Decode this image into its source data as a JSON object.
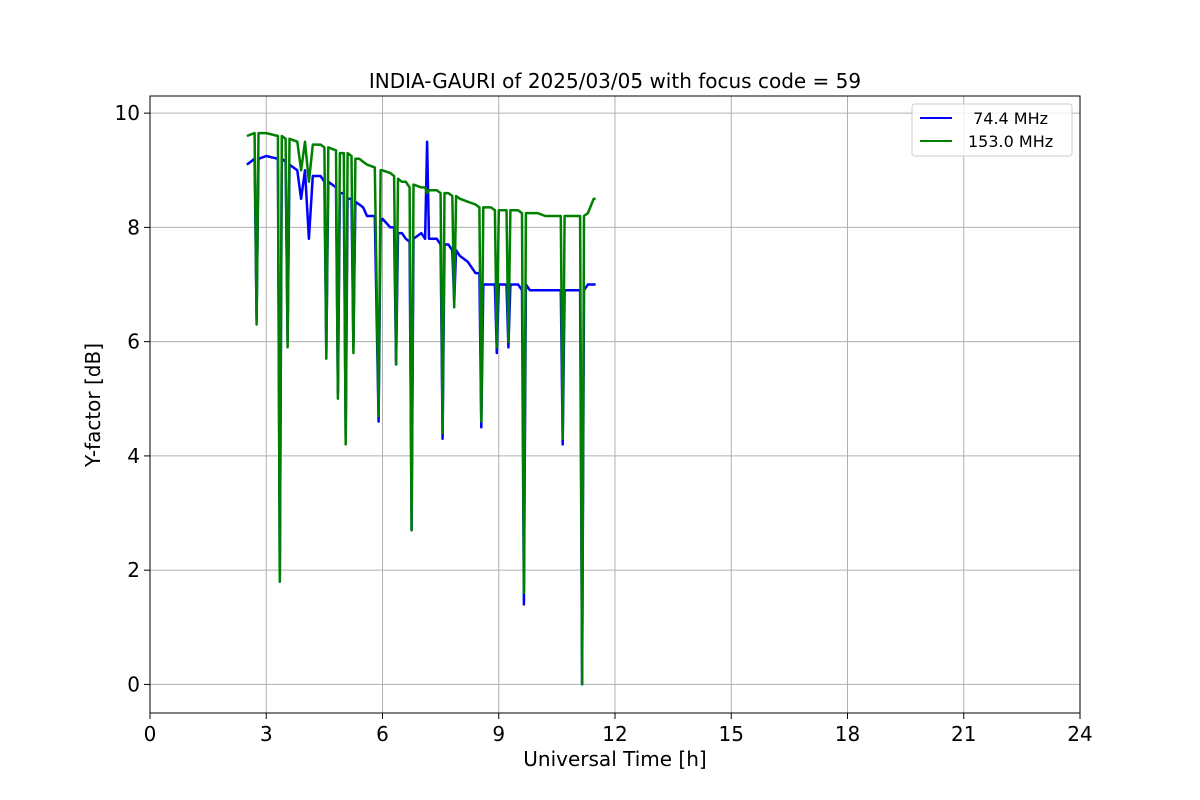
{
  "chart_data": {
    "type": "line",
    "title": "INDIA-GAURI of 2025/03/05 with focus code = 59",
    "xlabel": "Universal Time [h]",
    "ylabel": "Y-factor [dB]",
    "xlim": [
      0,
      24
    ],
    "ylim": [
      -0.5,
      10.3
    ],
    "xticks": [
      0,
      3,
      6,
      9,
      12,
      15,
      18,
      21,
      24
    ],
    "yticks": [
      0,
      2,
      4,
      6,
      8,
      10
    ],
    "grid": true,
    "legend_position": "top-right",
    "series": [
      {
        "name": " 74.4 MHz",
        "color": "#0000ff",
        "x": [
          2.5,
          2.7,
          2.75,
          2.8,
          3.0,
          3.3,
          3.35,
          3.4,
          3.5,
          3.55,
          3.6,
          3.8,
          3.9,
          4.0,
          4.1,
          4.2,
          4.4,
          4.5,
          4.55,
          4.6,
          4.8,
          4.85,
          4.9,
          5.0,
          5.05,
          5.1,
          5.2,
          5.25,
          5.3,
          5.4,
          5.5,
          5.6,
          5.8,
          5.9,
          5.95,
          6.0,
          6.2,
          6.3,
          6.35,
          6.4,
          6.5,
          6.6,
          6.7,
          6.75,
          6.8,
          7.0,
          7.1,
          7.15,
          7.2,
          7.4,
          7.5,
          7.55,
          7.6,
          7.7,
          7.8,
          7.85,
          7.9,
          8.0,
          8.2,
          8.4,
          8.5,
          8.55,
          8.6,
          8.8,
          8.9,
          8.95,
          9.0,
          9.2,
          9.25,
          9.3,
          9.5,
          9.6,
          9.65,
          9.7,
          9.8,
          10.0,
          10.2,
          10.4,
          10.5,
          10.6,
          10.65,
          10.7,
          10.8,
          11.0,
          11.1,
          11.15,
          11.2,
          11.3,
          11.5
        ],
        "y": [
          9.1,
          9.2,
          6.4,
          9.2,
          9.25,
          9.2,
          1.8,
          9.2,
          9.15,
          6.0,
          9.1,
          9.0,
          8.5,
          9.0,
          7.8,
          8.9,
          8.9,
          8.8,
          5.8,
          8.8,
          8.7,
          5.1,
          8.6,
          8.6,
          4.3,
          8.5,
          8.5,
          5.9,
          8.45,
          8.4,
          8.35,
          8.2,
          8.2,
          4.6,
          8.1,
          8.15,
          8.0,
          8.0,
          5.6,
          7.9,
          7.9,
          7.8,
          7.75,
          2.7,
          7.8,
          7.9,
          7.8,
          9.5,
          7.8,
          7.8,
          7.7,
          4.3,
          7.7,
          7.7,
          7.6,
          6.7,
          7.6,
          7.5,
          7.4,
          7.2,
          7.2,
          4.5,
          7.0,
          7.0,
          7.0,
          5.8,
          7.0,
          7.0,
          5.9,
          7.0,
          7.0,
          6.9,
          1.4,
          7.0,
          6.9,
          6.9,
          6.9,
          6.9,
          6.9,
          6.9,
          4.2,
          6.9,
          6.9,
          6.9,
          6.9,
          0.0,
          6.9,
          7.0,
          7.0
        ]
      },
      {
        "name": "153.0 MHz",
        "color": "#008000",
        "x": [
          2.5,
          2.7,
          2.75,
          2.8,
          3.0,
          3.3,
          3.35,
          3.4,
          3.5,
          3.55,
          3.6,
          3.8,
          3.9,
          4.0,
          4.1,
          4.2,
          4.4,
          4.5,
          4.55,
          4.6,
          4.8,
          4.85,
          4.9,
          5.0,
          5.05,
          5.1,
          5.2,
          5.25,
          5.3,
          5.4,
          5.5,
          5.6,
          5.8,
          5.9,
          5.95,
          6.0,
          6.2,
          6.3,
          6.35,
          6.4,
          6.5,
          6.6,
          6.7,
          6.75,
          6.8,
          7.0,
          7.1,
          7.15,
          7.2,
          7.4,
          7.5,
          7.55,
          7.6,
          7.7,
          7.8,
          7.85,
          7.9,
          8.0,
          8.2,
          8.4,
          8.5,
          8.55,
          8.6,
          8.8,
          8.9,
          8.95,
          9.0,
          9.2,
          9.25,
          9.3,
          9.5,
          9.6,
          9.65,
          9.7,
          9.8,
          10.0,
          10.2,
          10.4,
          10.5,
          10.6,
          10.65,
          10.7,
          10.8,
          11.0,
          11.1,
          11.15,
          11.2,
          11.3,
          11.45,
          11.5
        ],
        "y": [
          9.6,
          9.65,
          6.3,
          9.65,
          9.65,
          9.6,
          1.8,
          9.6,
          9.55,
          5.9,
          9.55,
          9.5,
          9.0,
          9.5,
          8.8,
          9.45,
          9.45,
          9.4,
          5.7,
          9.4,
          9.35,
          5.0,
          9.3,
          9.3,
          4.2,
          9.3,
          9.25,
          5.8,
          9.2,
          9.2,
          9.15,
          9.1,
          9.05,
          4.7,
          9.0,
          9.0,
          8.95,
          8.9,
          5.6,
          8.85,
          8.8,
          8.8,
          8.7,
          2.7,
          8.75,
          8.7,
          8.7,
          8.6,
          8.65,
          8.65,
          8.6,
          4.4,
          8.6,
          8.6,
          8.55,
          6.6,
          8.55,
          8.5,
          8.45,
          8.4,
          8.35,
          4.6,
          8.35,
          8.35,
          8.3,
          5.9,
          8.3,
          8.3,
          6.0,
          8.3,
          8.3,
          8.25,
          1.6,
          8.25,
          8.25,
          8.25,
          8.2,
          8.2,
          8.2,
          8.2,
          4.3,
          8.2,
          8.2,
          8.2,
          8.2,
          0.0,
          8.2,
          8.25,
          8.5,
          8.5
        ]
      }
    ]
  }
}
